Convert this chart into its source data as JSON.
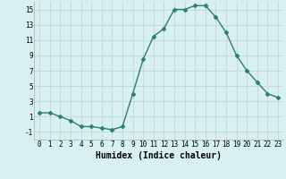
{
  "x": [
    0,
    1,
    2,
    3,
    4,
    5,
    6,
    7,
    8,
    9,
    10,
    11,
    12,
    13,
    14,
    15,
    16,
    17,
    18,
    19,
    20,
    21,
    22,
    23
  ],
  "y": [
    1.5,
    1.5,
    1.0,
    0.5,
    -0.3,
    -0.3,
    -0.5,
    -0.7,
    -0.3,
    4.0,
    8.5,
    11.5,
    12.5,
    15.0,
    15.0,
    15.5,
    15.5,
    14.0,
    12.0,
    9.0,
    7.0,
    5.5,
    4.0,
    3.5
  ],
  "line_color": "#2e7d6e",
  "marker": "D",
  "marker_size": 2.5,
  "bg_color": "#d8f0f0",
  "grid_color": "#c0d8d8",
  "xlabel": "Humidex (Indice chaleur)",
  "ylim": [
    -2,
    16
  ],
  "xlim": [
    -0.5,
    23.5
  ],
  "yticks": [
    -1,
    1,
    3,
    5,
    7,
    9,
    11,
    13,
    15
  ],
  "xticks": [
    0,
    1,
    2,
    3,
    4,
    5,
    6,
    7,
    8,
    9,
    10,
    11,
    12,
    13,
    14,
    15,
    16,
    17,
    18,
    19,
    20,
    21,
    22,
    23
  ],
  "tick_label_fontsize": 5.5,
  "xlabel_fontsize": 7
}
